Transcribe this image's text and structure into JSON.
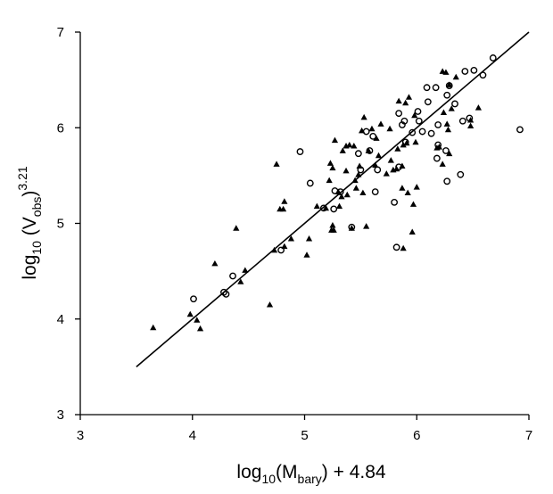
{
  "chart_data": {
    "type": "scatter",
    "xlabel": {
      "prefix": "log",
      "sub": "10",
      "mid": "(M",
      "sub2": "bary",
      "suffix": ") + 4.84"
    },
    "ylabel": {
      "prefix": "log",
      "sub": "10",
      "mid": " (V",
      "sub2": "obs",
      "suffix": ")",
      "sup": "3.21"
    },
    "xlim": [
      3,
      7
    ],
    "ylim": [
      3,
      7
    ],
    "x_ticks": [
      "3",
      "4",
      "5",
      "6",
      "7"
    ],
    "y_ticks": [
      "3",
      "4",
      "5",
      "6",
      "7"
    ],
    "grid": false,
    "legend": "none",
    "series": [
      {
        "marker": "triangle",
        "points": [
          [
            3.65,
            3.91
          ],
          [
            3.98,
            4.05
          ],
          [
            4.04,
            3.99
          ],
          [
            4.07,
            3.9
          ],
          [
            4.2,
            4.58
          ],
          [
            4.39,
            4.95
          ],
          [
            4.43,
            4.39
          ],
          [
            4.47,
            4.51
          ],
          [
            4.69,
            4.15
          ],
          [
            4.73,
            4.72
          ],
          [
            4.75,
            5.62
          ],
          [
            4.78,
            5.15
          ],
          [
            4.81,
            5.15
          ],
          [
            4.82,
            5.23
          ],
          [
            4.82,
            4.76
          ],
          [
            4.88,
            4.84
          ],
          [
            5.02,
            4.67
          ],
          [
            5.04,
            4.84
          ],
          [
            5.11,
            5.18
          ],
          [
            5.19,
            5.16
          ],
          [
            5.22,
            5.45
          ],
          [
            5.23,
            5.63
          ],
          [
            5.24,
            4.93
          ],
          [
            5.25,
            4.98
          ],
          [
            5.25,
            5.58
          ],
          [
            5.26,
            4.93
          ],
          [
            5.27,
            5.87
          ],
          [
            5.3,
            5.33
          ],
          [
            5.31,
            5.18
          ],
          [
            5.33,
            5.28
          ],
          [
            5.34,
            5.76
          ],
          [
            5.37,
            5.55
          ],
          [
            5.37,
            5.81
          ],
          [
            5.38,
            5.3
          ],
          [
            5.4,
            5.82
          ],
          [
            5.42,
            4.95
          ],
          [
            5.44,
            5.81
          ],
          [
            5.45,
            5.45
          ],
          [
            5.46,
            5.37
          ],
          [
            5.48,
            5.51
          ],
          [
            5.49,
            5.6
          ],
          [
            5.51,
            5.97
          ],
          [
            5.52,
            5.32
          ],
          [
            5.53,
            6.11
          ],
          [
            5.55,
            4.97
          ],
          [
            5.57,
            5.76
          ],
          [
            5.6,
            5.99
          ],
          [
            5.63,
            5.61
          ],
          [
            5.64,
            5.89
          ],
          [
            5.66,
            5.71
          ],
          [
            5.68,
            6.04
          ],
          [
            5.73,
            5.52
          ],
          [
            5.76,
            5.99
          ],
          [
            5.77,
            5.66
          ],
          [
            5.79,
            5.56
          ],
          [
            5.82,
            5.57
          ],
          [
            5.83,
            5.78
          ],
          [
            5.84,
            6.28
          ],
          [
            5.87,
            5.37
          ],
          [
            5.87,
            5.6
          ],
          [
            5.88,
            5.82
          ],
          [
            5.88,
            4.74
          ],
          [
            5.9,
            6.26
          ],
          [
            5.91,
            5.84
          ],
          [
            5.92,
            5.32
          ],
          [
            5.93,
            6.32
          ],
          [
            5.96,
            4.91
          ],
          [
            5.97,
            5.2
          ],
          [
            5.98,
            6.13
          ],
          [
            5.99,
            5.85
          ],
          [
            6.0,
            5.38
          ],
          [
            6.18,
            5.79
          ],
          [
            6.2,
            5.8
          ],
          [
            6.23,
            5.62
          ],
          [
            6.23,
            6.59
          ],
          [
            6.24,
            6.16
          ],
          [
            6.26,
            6.58
          ],
          [
            6.27,
            6.04
          ],
          [
            6.28,
            5.98
          ],
          [
            6.29,
            6.45
          ],
          [
            6.29,
            5.73
          ],
          [
            6.31,
            6.2
          ],
          [
            6.35,
            6.53
          ],
          [
            6.48,
            6.08
          ],
          [
            6.48,
            6.02
          ],
          [
            6.55,
            6.21
          ]
        ]
      },
      {
        "marker": "circle",
        "points": [
          [
            4.01,
            4.21
          ],
          [
            4.28,
            4.28
          ],
          [
            4.3,
            4.26
          ],
          [
            4.36,
            4.45
          ],
          [
            4.79,
            4.72
          ],
          [
            4.96,
            5.75
          ],
          [
            5.05,
            5.42
          ],
          [
            5.17,
            5.16
          ],
          [
            5.26,
            5.15
          ],
          [
            5.27,
            5.34
          ],
          [
            5.32,
            5.33
          ],
          [
            5.42,
            4.96
          ],
          [
            5.48,
            5.73
          ],
          [
            5.5,
            5.56
          ],
          [
            5.55,
            5.96
          ],
          [
            5.58,
            5.76
          ],
          [
            5.61,
            5.91
          ],
          [
            5.63,
            5.33
          ],
          [
            5.65,
            5.56
          ],
          [
            5.8,
            5.22
          ],
          [
            5.82,
            4.75
          ],
          [
            5.84,
            5.59
          ],
          [
            5.84,
            6.15
          ],
          [
            5.87,
            6.03
          ],
          [
            5.89,
            6.07
          ],
          [
            5.9,
            5.85
          ],
          [
            5.96,
            5.95
          ],
          [
            6.01,
            6.17
          ],
          [
            6.02,
            6.07
          ],
          [
            6.05,
            5.96
          ],
          [
            6.09,
            6.42
          ],
          [
            6.1,
            6.27
          ],
          [
            6.13,
            5.94
          ],
          [
            6.17,
            6.42
          ],
          [
            6.18,
            5.68
          ],
          [
            6.19,
            5.82
          ],
          [
            6.19,
            6.03
          ],
          [
            6.26,
            5.76
          ],
          [
            6.27,
            6.34
          ],
          [
            6.27,
            5.44
          ],
          [
            6.29,
            6.44
          ],
          [
            6.34,
            6.25
          ],
          [
            6.39,
            5.51
          ],
          [
            6.41,
            6.07
          ],
          [
            6.43,
            6.59
          ],
          [
            6.47,
            6.1
          ],
          [
            6.51,
            6.6
          ],
          [
            6.59,
            6.55
          ],
          [
            6.68,
            6.73
          ],
          [
            6.92,
            5.98
          ]
        ]
      }
    ],
    "fit_line": {
      "type": "linear",
      "x": [
        3.5,
        7.0
      ],
      "y": [
        3.5,
        7.0
      ]
    }
  }
}
